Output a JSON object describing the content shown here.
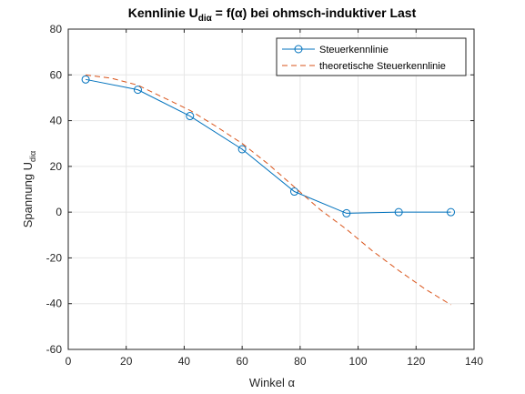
{
  "chart_data": {
    "type": "line",
    "title": {
      "prefix": "Kennlinie U",
      "subscript": "diα",
      "suffix": " = f(α) bei ohmsch-induktiver Last"
    },
    "xlabel": "Winkel α",
    "ylabel": {
      "prefix": "Spannung U",
      "subscript": "diα"
    },
    "xlim": [
      0,
      140
    ],
    "ylim": [
      -60,
      80
    ],
    "xticks": [
      0,
      20,
      40,
      60,
      80,
      100,
      120,
      140
    ],
    "yticks": [
      -60,
      -40,
      -20,
      0,
      20,
      40,
      60,
      80
    ],
    "grid": true,
    "legend_position": "top-right",
    "series": [
      {
        "name": "Steuerkennlinie",
        "style": "solid",
        "marker": "circle",
        "color": "#0072BD",
        "x": [
          6,
          24,
          42,
          60,
          78,
          96,
          114,
          132
        ],
        "y": [
          58,
          53.5,
          42,
          27.5,
          9,
          -0.5,
          0,
          0
        ]
      },
      {
        "name": "theoretische Steuerkennlinie",
        "style": "dashed",
        "marker": "none",
        "color": "#D95319",
        "x": [
          6,
          15,
          24,
          33,
          42,
          51,
          60,
          69,
          78,
          87,
          96,
          105,
          114,
          123,
          132
        ],
        "y": [
          60,
          58.5,
          55.5,
          50,
          44.5,
          37.5,
          30,
          21,
          11,
          1,
          -7.5,
          -17,
          -25.5,
          -33.5,
          -40.5
        ]
      }
    ]
  }
}
